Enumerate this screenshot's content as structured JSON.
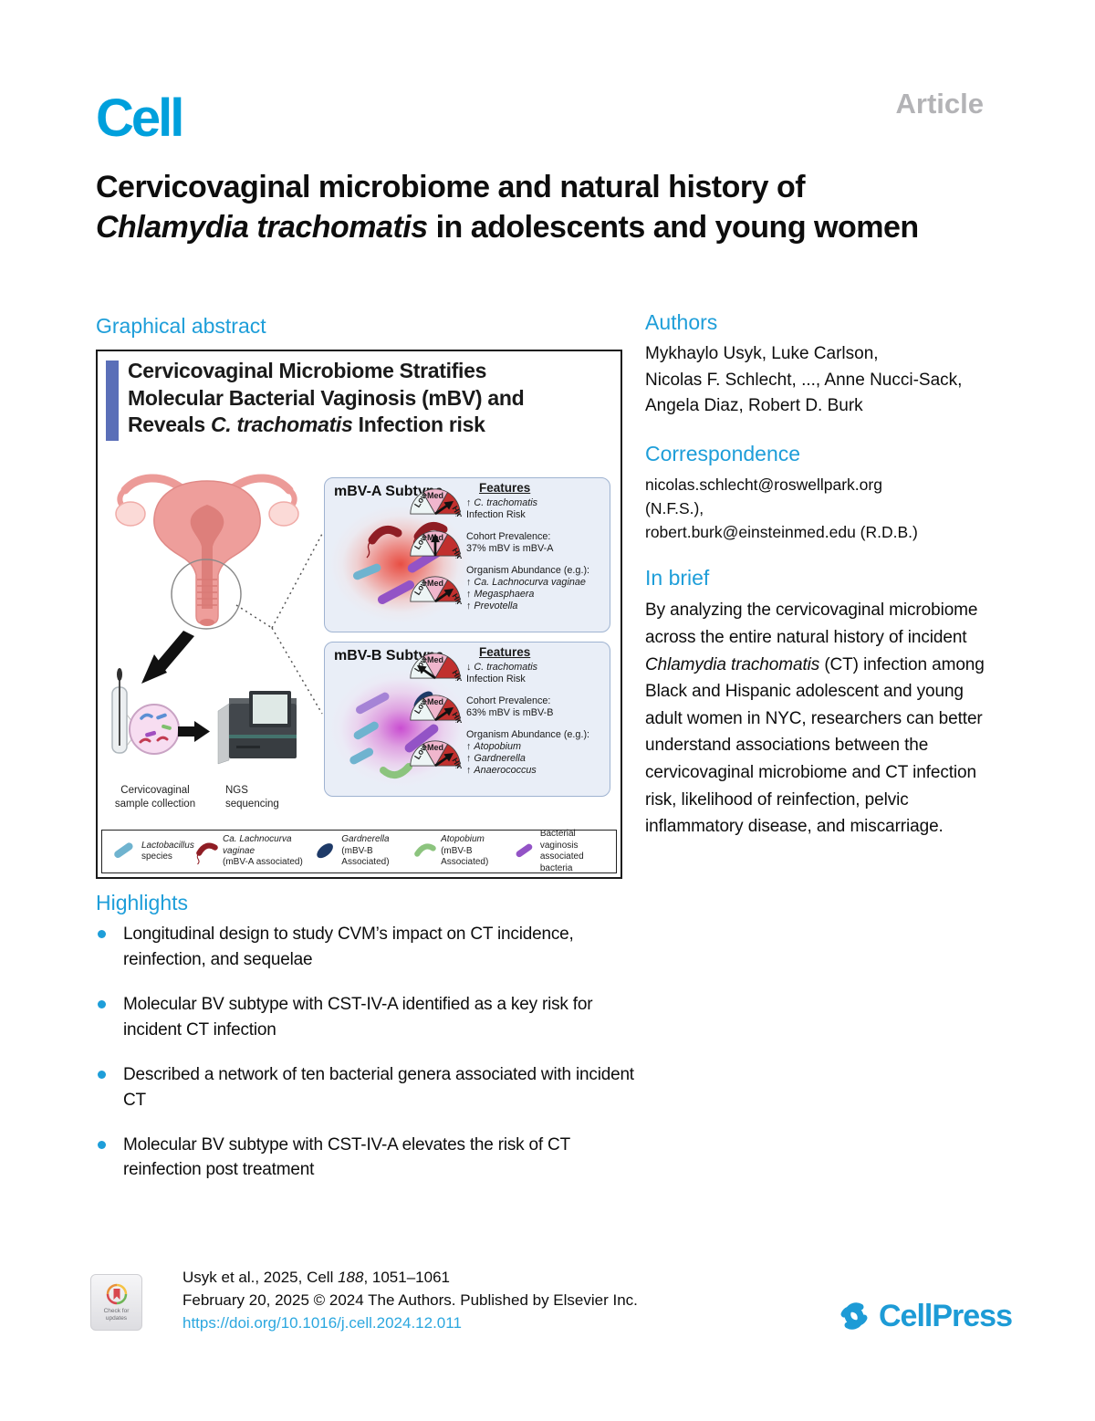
{
  "journal": {
    "logo": "Cell",
    "article_label": "Article"
  },
  "title": {
    "segments": [
      {
        "t": "Cervicovaginal microbiome and natural history of "
      },
      {
        "t": "Chlamydia trachomatis",
        "i": true
      },
      {
        "t": " in adolescents and young women"
      }
    ]
  },
  "sections": {
    "graphical_abstract": {
      "heading": "Graphical abstract"
    },
    "highlights": {
      "heading": "Highlights",
      "items": [
        "Longitudinal design to study CVM’s impact on CT incidence, reinfection, and sequelae",
        "Molecular BV subtype with CST-IV-A identified as a key risk for incident CT infection",
        "Described a network of ten bacterial genera associated with incident CT",
        "Molecular BV subtype with CST-IV-A elevates the risk of CT reinfection post treatment"
      ]
    },
    "authors": {
      "heading": "Authors",
      "lines": [
        "Mykhaylo Usyk, Luke Carlson,",
        "Nicolas F. Schlecht, ..., Anne Nucci-Sack,",
        "Angela Diaz, Robert D. Burk"
      ]
    },
    "correspondence": {
      "heading": "Correspondence",
      "lines": [
        "nicolas.schlecht@roswellpark.org",
        "(N.F.S.),",
        "robert.burk@einsteinmed.edu (R.D.B.)"
      ]
    },
    "in_brief": {
      "heading": "In brief",
      "segments": [
        {
          "t": "By analyzing the cervicovaginal microbiome across the entire natural history of incident "
        },
        {
          "t": "Chlamydia trachomatis",
          "i": true
        },
        {
          "t": " (CT) infection among Black and Hispanic adolescent and young adult women in NYC, researchers can better understand associations between the cervicovaginal microbiome and CT infection risk, likelihood of reinfection, pelvic inflammatory disease, and miscarriage."
        }
      ]
    }
  },
  "abstract_figure": {
    "title_lines": [
      [
        {
          "t": "Cervicovaginal Microbiome Stratifies"
        }
      ],
      [
        {
          "t": "Molecular Bacterial Vaginosis (mBV) and"
        }
      ],
      [
        {
          "t": "Reveals "
        },
        {
          "t": "C. trachomatis",
          "i": true
        },
        {
          "t": " Infection risk"
        }
      ]
    ],
    "sample_label_lines": [
      "Cervicovaginal",
      "sample collection"
    ],
    "ngs_label_lines": [
      "NGS",
      "sequencing"
    ],
    "gauge_labels": [
      "Low",
      "Med",
      "High"
    ],
    "panels": [
      {
        "id": "mBV-A",
        "title": "mBV-A Subtype",
        "features_heading": "Features",
        "rows": [
          {
            "gauge": "high",
            "lines": [
              [
                {
                  "t": "↑ "
                },
                {
                  "t": "C. trachomatis",
                  "i": true
                }
              ],
              [
                {
                  "t": "Infection Risk"
                }
              ]
            ]
          },
          {
            "gauge": "med",
            "lines": [
              [
                {
                  "t": "Cohort Prevalence:"
                }
              ],
              [
                {
                  "t": "37% mBV is mBV-A"
                }
              ]
            ]
          },
          {
            "gauge": "high",
            "lines": [
              [
                {
                  "t": "Organism Abundance (e.g.):"
                }
              ],
              [
                {
                  "t": "↑ "
                },
                {
                  "t": "Ca. Lachnocurva vaginae",
                  "i": true
                }
              ],
              [
                {
                  "t": "↑ "
                },
                {
                  "t": "Megasphaera",
                  "i": true
                }
              ],
              [
                {
                  "t": "↑ "
                },
                {
                  "t": "Prevotella",
                  "i": true
                }
              ]
            ]
          }
        ]
      },
      {
        "id": "mBV-B",
        "title": "mBV-B Subtype",
        "features_heading": "Features",
        "rows": [
          {
            "gauge": "low",
            "lines": [
              [
                {
                  "t": "↓ "
                },
                {
                  "t": "C. trachomatis",
                  "i": true
                }
              ],
              [
                {
                  "t": "Infection Risk"
                }
              ]
            ]
          },
          {
            "gauge": "high",
            "lines": [
              [
                {
                  "t": "Cohort Prevalence:"
                }
              ],
              [
                {
                  "t": "63% mBV is mBV-B"
                }
              ]
            ]
          },
          {
            "gauge": "high",
            "lines": [
              [
                {
                  "t": "Organism Abundance (e.g.):"
                }
              ],
              [
                {
                  "t": "↑ "
                },
                {
                  "t": "Atopobium",
                  "i": true
                }
              ],
              [
                {
                  "t": "↑ "
                },
                {
                  "t": "Gardnerella",
                  "i": true
                }
              ],
              [
                {
                  "t": "↑ "
                },
                {
                  "t": "Anaerococcus",
                  "i": true
                }
              ]
            ]
          }
        ]
      }
    ],
    "legend": [
      {
        "icon": "rod-bacterium-icon",
        "color": "bact_lactobacillus",
        "lines": [
          [
            {
              "t": "Lactobacillus",
              "i": true
            }
          ],
          [
            {
              "t": "species"
            }
          ]
        ]
      },
      {
        "icon": "crescent-tail-bacterium-icon",
        "color": "bact_lachnocurva",
        "lines": [
          [
            {
              "t": "Ca. Lachnocurva vaginae",
              "i": true
            }
          ],
          [
            {
              "t": "(mBV-A associated)"
            }
          ]
        ]
      },
      {
        "icon": "ellipse-bacterium-icon",
        "color": "bact_gardnerella",
        "lines": [
          [
            {
              "t": "Gardnerella",
              "i": true
            }
          ],
          [
            {
              "t": "(mBV-B Associated)"
            }
          ]
        ]
      },
      {
        "icon": "crescent-bacterium-icon",
        "color": "bact_atopobium",
        "lines": [
          [
            {
              "t": "Atopobium",
              "i": true
            }
          ],
          [
            {
              "t": "(mBV-B Associated)"
            }
          ]
        ]
      },
      {
        "icon": "rod-bacterium-icon",
        "color": "bact_bv",
        "lines": [
          [
            {
              "t": "Bacterial vaginosis"
            }
          ],
          [
            {
              "t": "associated bacteria"
            }
          ]
        ]
      }
    ]
  },
  "footer": {
    "citation_segments": [
      {
        "t": "Usyk et al., 2025, Cell "
      },
      {
        "t": "188",
        "i": true
      },
      {
        "t": ", 1051–1061"
      }
    ],
    "publication_line": "February 20, 2025 © 2024 The Authors. Published by Elsevier Inc.",
    "doi": "https://doi.org/10.1016/j.cell.2024.12.011",
    "check_updates_lines": [
      "Check for",
      "updates"
    ],
    "publisher_logo": "CellPress"
  },
  "colors": {
    "brand_blue": "#00A0DC",
    "heading_blue": "#1E9ED9",
    "link_blue": "#2BA7DF",
    "article_gray": "#B3B3B6",
    "figure_bar_blue": "#5A6FB8",
    "panel_bg": "#E9EEF7",
    "panel_border": "#9FB3D1",
    "gauge_low": "#EDF5F5",
    "gauge_med": "#F0B6CD",
    "gauge_high": "#C1302E",
    "bact_lactobacillus": "#6FB3CF",
    "bact_lachnocurva": "#8F1D24",
    "bact_gardnerella": "#1E3A68",
    "bact_atopobium": "#8CC47E",
    "bact_bv": "#9353C6"
  }
}
